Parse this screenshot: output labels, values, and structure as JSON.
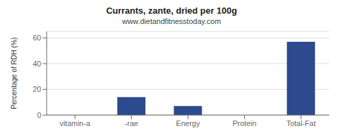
{
  "chart_data": {
    "type": "bar",
    "title": "Currants, zante, dried per 100g",
    "subtitle": "www.dietandfitnesstoday.com",
    "categories": [
      "vitamin-a",
      "-rae",
      "Energy",
      "Protein",
      "Total-Fat"
    ],
    "values": [
      0,
      14,
      7,
      0,
      57
    ],
    "color": "#2e4a8e",
    "ylabel": "Percentage of RDH (%)",
    "ylim": [
      0,
      65
    ],
    "yticks": [
      0,
      20,
      40,
      60
    ],
    "grid": true
  }
}
